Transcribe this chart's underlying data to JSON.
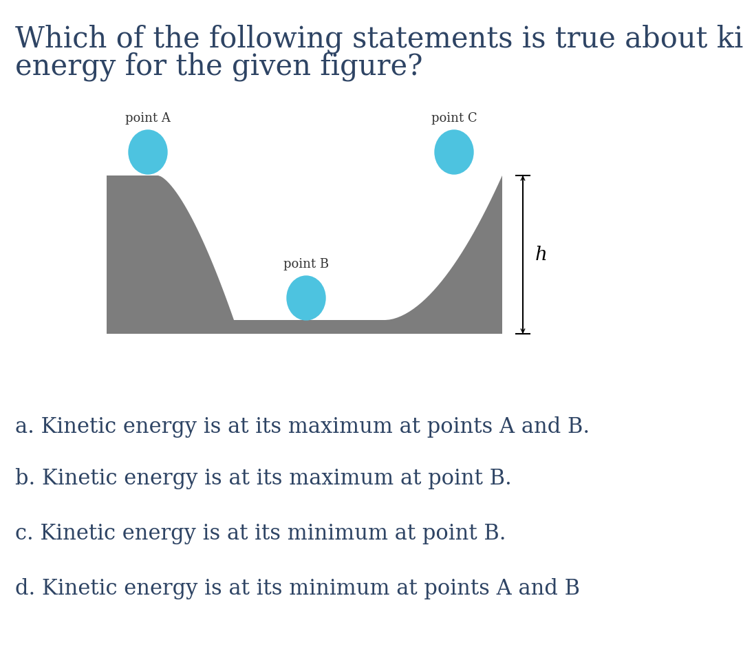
{
  "title_line1": "Which of the following statements is true about kinetic",
  "title_line2": "energy for the given figure?",
  "title_color": "#2e4464",
  "title_fontsize": 30,
  "bg_color": "#ffffff",
  "ramp_color": "#7d7d7d",
  "ball_color": "#4dc3e0",
  "label_color": "#333333",
  "label_fontsize": 13,
  "h_label": "h",
  "options": [
    "a. Kinetic energy is at its maximum at points A and B.",
    "b. Kinetic energy is at its maximum at point B.",
    "c. Kinetic energy is at its minimum at point B.",
    "d. Kinetic energy is at its minimum at points A and B"
  ],
  "options_fontsize": 22,
  "options_color": "#2e4464",
  "fig_width": 10.8,
  "fig_height": 9.75,
  "dpi": 100
}
